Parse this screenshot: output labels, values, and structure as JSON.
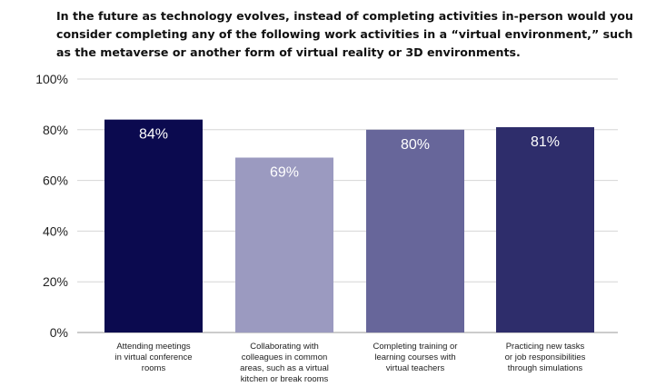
{
  "title_lines": [
    "In the future as technology evolves, instead of completing activities in-person would you",
    "consider completing any of the following work activities in a “virtual environment,” such",
    "as the metaverse or another form of virtual reality or 3D environments."
  ],
  "chart_data": {
    "type": "bar",
    "title": "In the future as technology evolves, instead of completing activities in-person would you consider completing any of the following work activities in a “virtual environment,” such as the metaverse or another form of virtual reality or 3D environments.",
    "categories": [
      [
        "Attending meetings",
        "in virtual conference",
        "rooms"
      ],
      [
        "Collaborating with",
        "colleagues in common",
        "areas, such as a virtual",
        "kitchen or break rooms"
      ],
      [
        "Completing training or",
        "learning courses with",
        "virtual teachers"
      ],
      [
        "Practicing new tasks",
        "or job responsibilities",
        "through simulations"
      ]
    ],
    "values": [
      84,
      69,
      80,
      81
    ],
    "value_labels": [
      "84%",
      "69%",
      "80%",
      "81%"
    ],
    "bar_colors": [
      "#0b0a4f",
      "#9b9ac0",
      "#67669a",
      "#2e2d6b"
    ],
    "ylim": [
      0,
      100
    ],
    "yticks": [
      0,
      20,
      40,
      60,
      80,
      100
    ],
    "ytick_labels": [
      "0%",
      "20%",
      "40%",
      "60%",
      "80%",
      "100%"
    ],
    "xlabel": "",
    "ylabel": "",
    "grid": true
  }
}
